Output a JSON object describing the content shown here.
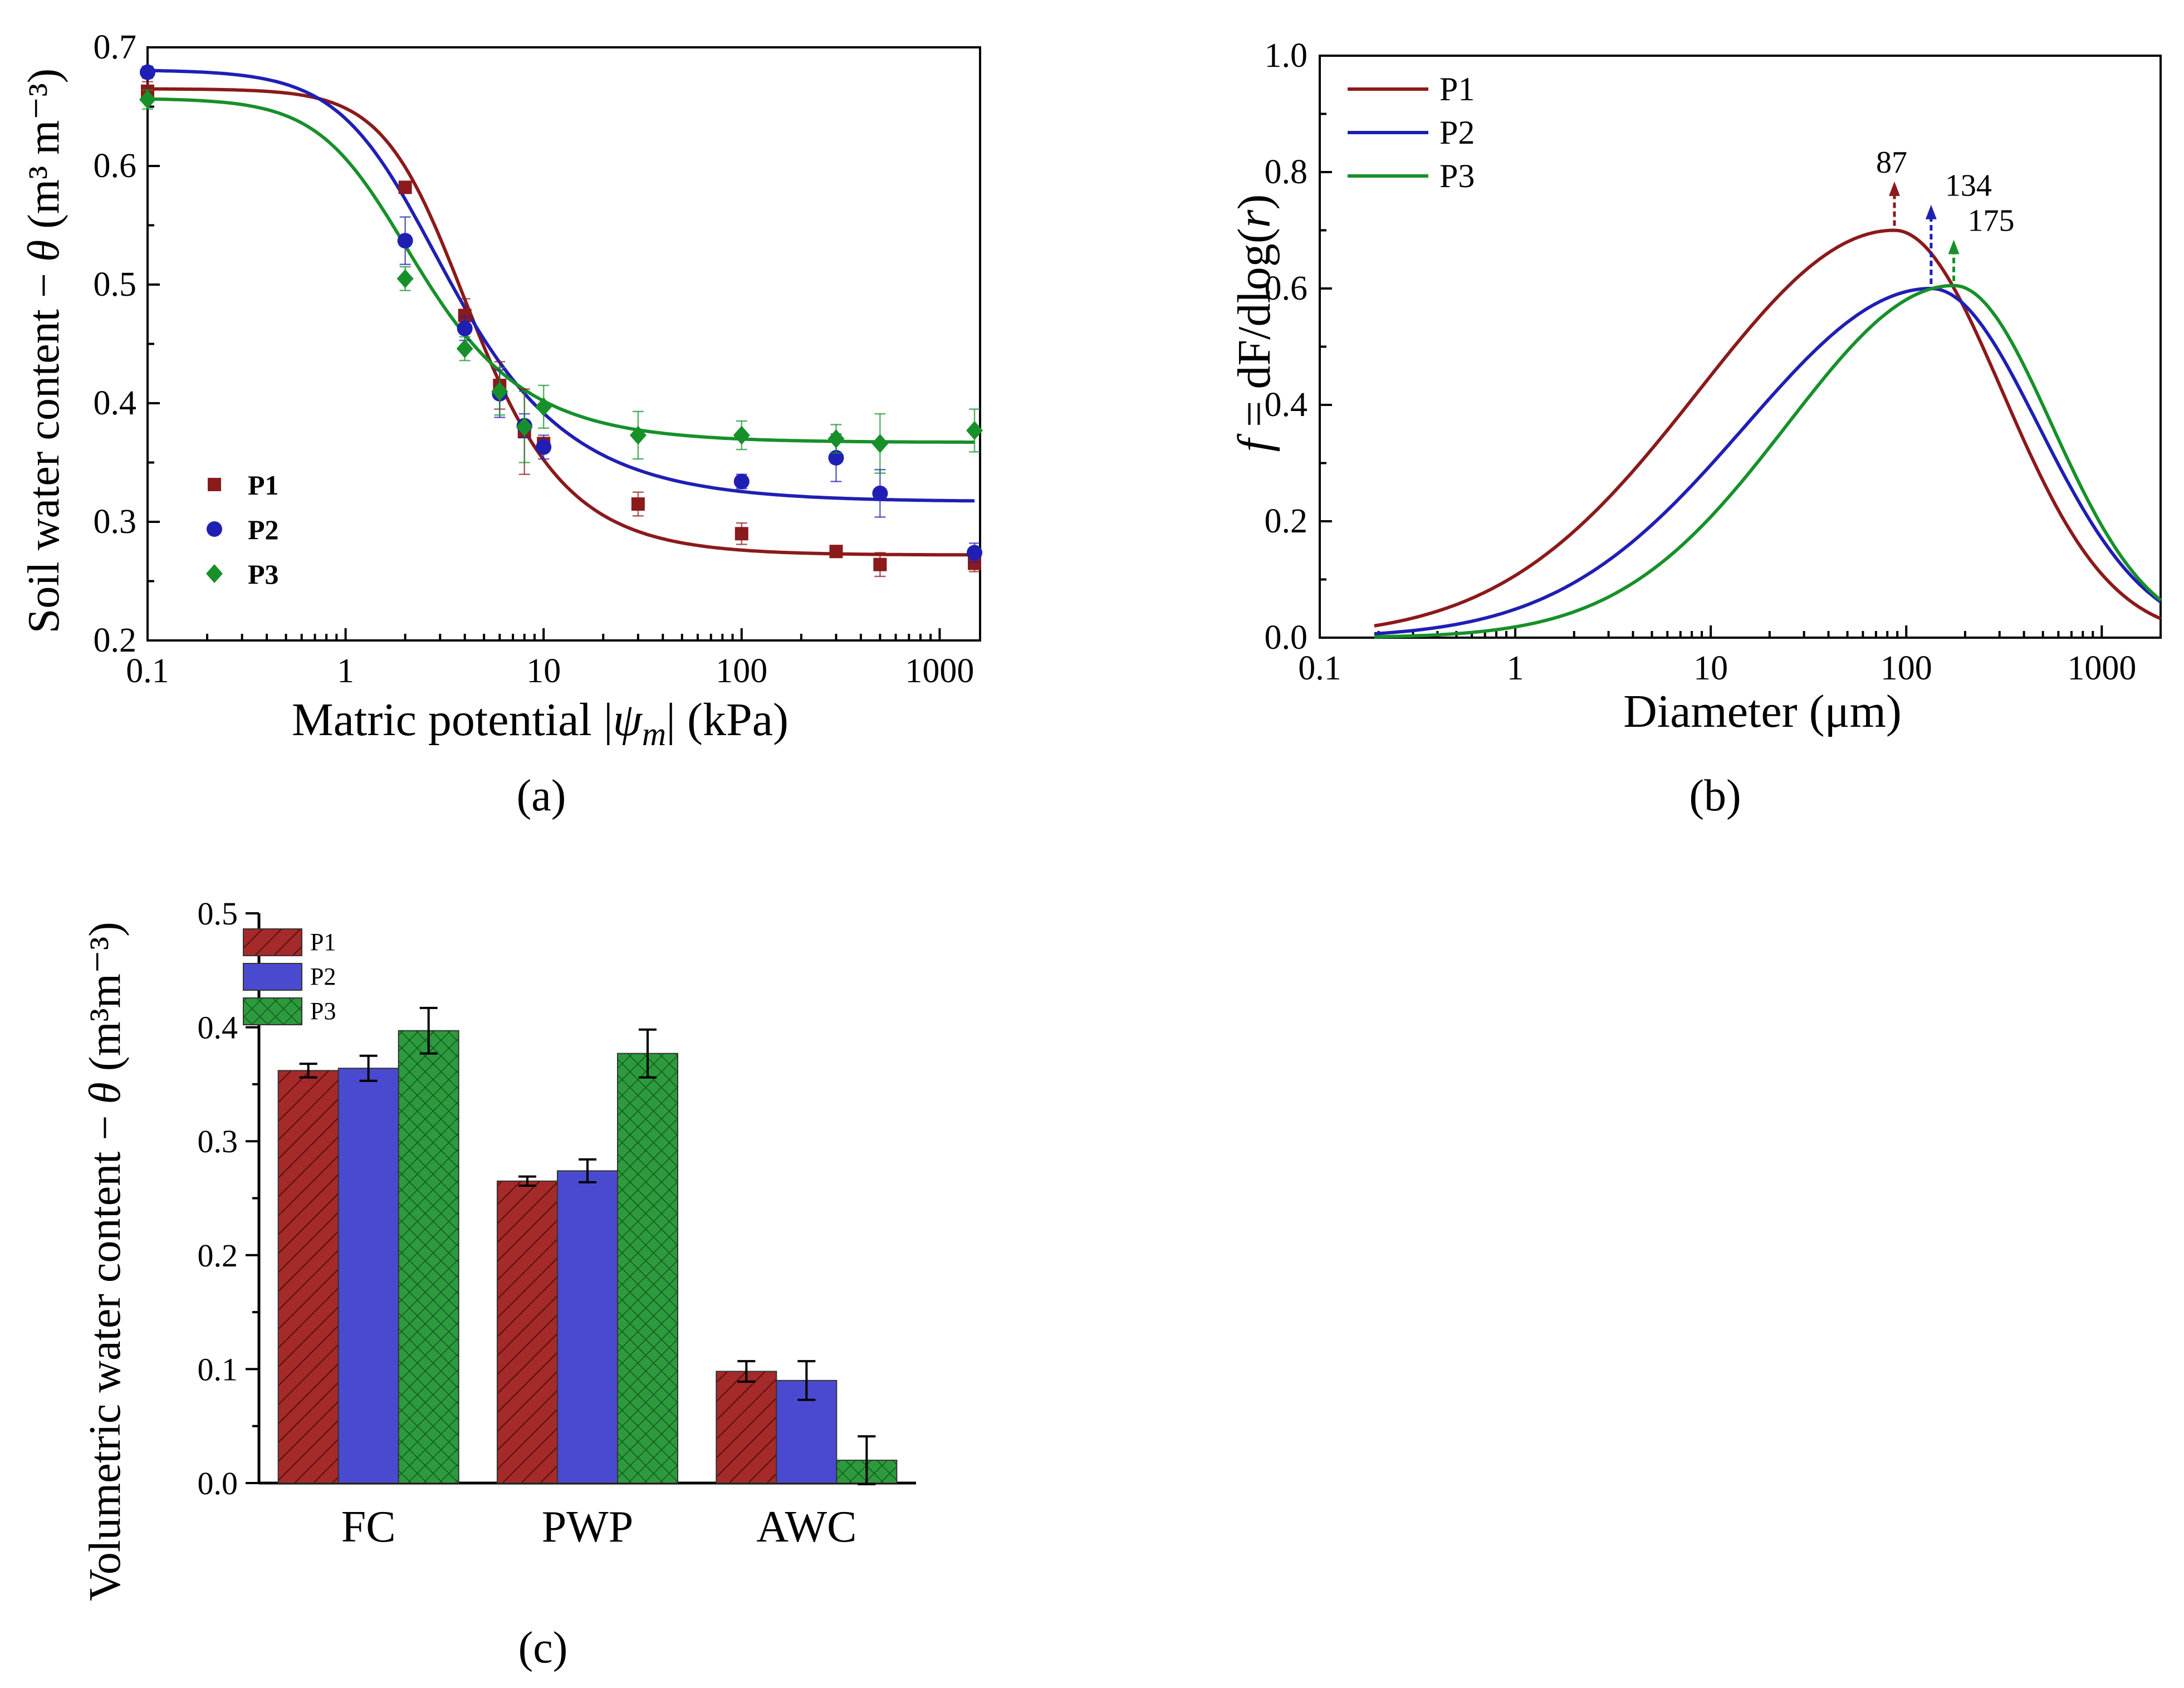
{
  "colors": {
    "P1": "#8b1a1a",
    "P2": "#1f1fb4",
    "P3": "#17902a",
    "P1_bar": "#a52a2a",
    "P2_bar": "#4a4ad0",
    "P3_bar": "#2e9a3e"
  },
  "chart_data": [
    {
      "id": "a",
      "type": "scatter",
      "panel_label": "(a)",
      "xlabel_prefix": "Matric potential |",
      "xlabel_symbol": "ψ",
      "xlabel_sub": "m",
      "xlabel_suffix": "|  (kPa)",
      "ylabel_main": "Soil water content − ",
      "ylabel_symbol": "θ",
      "ylabel_unit": " (m³ m⁻³)",
      "xscale": "log",
      "xlim": [
        0.1,
        1600
      ],
      "ylim": [
        0.2,
        0.7
      ],
      "xticks": [
        0.1,
        1,
        10,
        100,
        1000
      ],
      "xtick_labels": [
        "0.1",
        "1",
        "10",
        "100",
        "1000"
      ],
      "yticks": [
        0.2,
        0.3,
        0.4,
        0.5,
        0.6,
        0.7
      ],
      "ytick_labels": [
        "0.2",
        "0.3",
        "0.4",
        "0.5",
        "0.6",
        "0.7"
      ],
      "legend_position": "bottom-left",
      "series": [
        {
          "name": "P1",
          "marker": "square",
          "x": [
            0.1,
            2,
            4,
            6,
            8,
            10,
            30,
            100,
            300,
            500,
            1500
          ],
          "y": [
            0.663,
            0.582,
            0.474,
            0.415,
            0.376,
            0.366,
            0.315,
            0.29,
            0.275,
            0.264,
            0.265
          ],
          "err": [
            0.008,
            0.005,
            0.014,
            0.02,
            0.036,
            0.005,
            0.01,
            0.009,
            0.005,
            0.01,
            0.007
          ],
          "fit": {
            "theta_r": 0.272,
            "theta_s": 0.665,
            "alpha": 0.33,
            "n": 2.3
          }
        },
        {
          "name": "P2",
          "marker": "circle",
          "x": [
            0.1,
            2,
            4,
            6,
            8,
            10,
            100,
            300,
            500,
            1500
          ],
          "y": [
            0.679,
            0.537,
            0.463,
            0.408,
            0.381,
            0.363,
            0.334,
            0.354,
            0.324,
            0.274
          ],
          "err": [
            0.005,
            0.02,
            0.01,
            0.02,
            0.01,
            0.01,
            0.006,
            0.02,
            0.02,
            0.008
          ],
          "fit": {
            "theta_r": 0.317,
            "theta_s": 0.681,
            "alpha": 0.52,
            "n": 1.95
          }
        },
        {
          "name": "P3",
          "marker": "diamond",
          "x": [
            0.1,
            2,
            4,
            6,
            8,
            10,
            30,
            100,
            300,
            500,
            1500
          ],
          "y": [
            0.656,
            0.505,
            0.446,
            0.41,
            0.38,
            0.397,
            0.373,
            0.373,
            0.37,
            0.366,
            0.377
          ],
          "err": [
            0.008,
            0.01,
            0.01,
            0.02,
            0.03,
            0.018,
            0.02,
            0.012,
            0.012,
            0.025,
            0.018
          ],
          "fit": {
            "theta_r": 0.367,
            "theta_s": 0.657,
            "alpha": 0.68,
            "n": 2.1
          }
        }
      ]
    },
    {
      "id": "b",
      "type": "line",
      "panel_label": "(b)",
      "xlabel": "Diameter (μm)",
      "ylabel_f": "f",
      "ylabel_mid": " = dF/dlog(",
      "ylabel_r": "r",
      "ylabel_end": ")",
      "xscale": "log",
      "xlim": [
        0.1,
        2000
      ],
      "ylim": [
        0,
        1.0
      ],
      "xticks": [
        0.1,
        1,
        10,
        100,
        1000
      ],
      "xtick_labels": [
        "0.1",
        "1",
        "10",
        "100",
        "1000"
      ],
      "yticks": [
        0,
        0.2,
        0.4,
        0.6,
        0.8,
        1.0
      ],
      "ytick_labels": [
        "0.0",
        "0.2",
        "0.4",
        "0.6",
        "0.8",
        "1.0"
      ],
      "legend_position": "top-left",
      "series": [
        {
          "name": "P1",
          "peak_diameter": 87,
          "peak_label": "87",
          "peak_height": 0.7,
          "sigma_left": 1.0,
          "sigma_right": 0.55
        },
        {
          "name": "P2",
          "peak_diameter": 134,
          "peak_label": "134",
          "peak_height": 0.6,
          "sigma_left": 0.95,
          "sigma_right": 0.55
        },
        {
          "name": "P3",
          "peak_diameter": 175,
          "peak_label": "175",
          "peak_height": 0.605,
          "sigma_left": 0.85,
          "sigma_right": 0.5
        }
      ],
      "x_start": 0.19
    },
    {
      "id": "c",
      "type": "bar",
      "panel_label": "(c)",
      "ylabel_main": "Volumetric water content − ",
      "ylabel_symbol": "θ",
      "ylabel_unit": " (m³m⁻³)",
      "ylim": [
        0,
        0.5
      ],
      "yticks": [
        0,
        0.1,
        0.2,
        0.3,
        0.4,
        0.5
      ],
      "ytick_labels": [
        "0.0",
        "0.1",
        "0.2",
        "0.3",
        "0.4",
        "0.5"
      ],
      "categories": [
        "FC",
        "PWP",
        "AWC"
      ],
      "legend_position": "top-left",
      "series": [
        {
          "name": "P1",
          "values": [
            0.362,
            0.265,
            0.098
          ],
          "err": [
            0.006,
            0.004,
            0.009
          ],
          "pattern": "hatch"
        },
        {
          "name": "P2",
          "values": [
            0.364,
            0.274,
            0.09
          ],
          "err": [
            0.011,
            0.01,
            0.017
          ],
          "pattern": "solid"
        },
        {
          "name": "P3",
          "values": [
            0.397,
            0.377,
            0.02
          ],
          "err": [
            0.02,
            0.021,
            0.021
          ],
          "pattern": "crosshatch"
        }
      ]
    }
  ]
}
